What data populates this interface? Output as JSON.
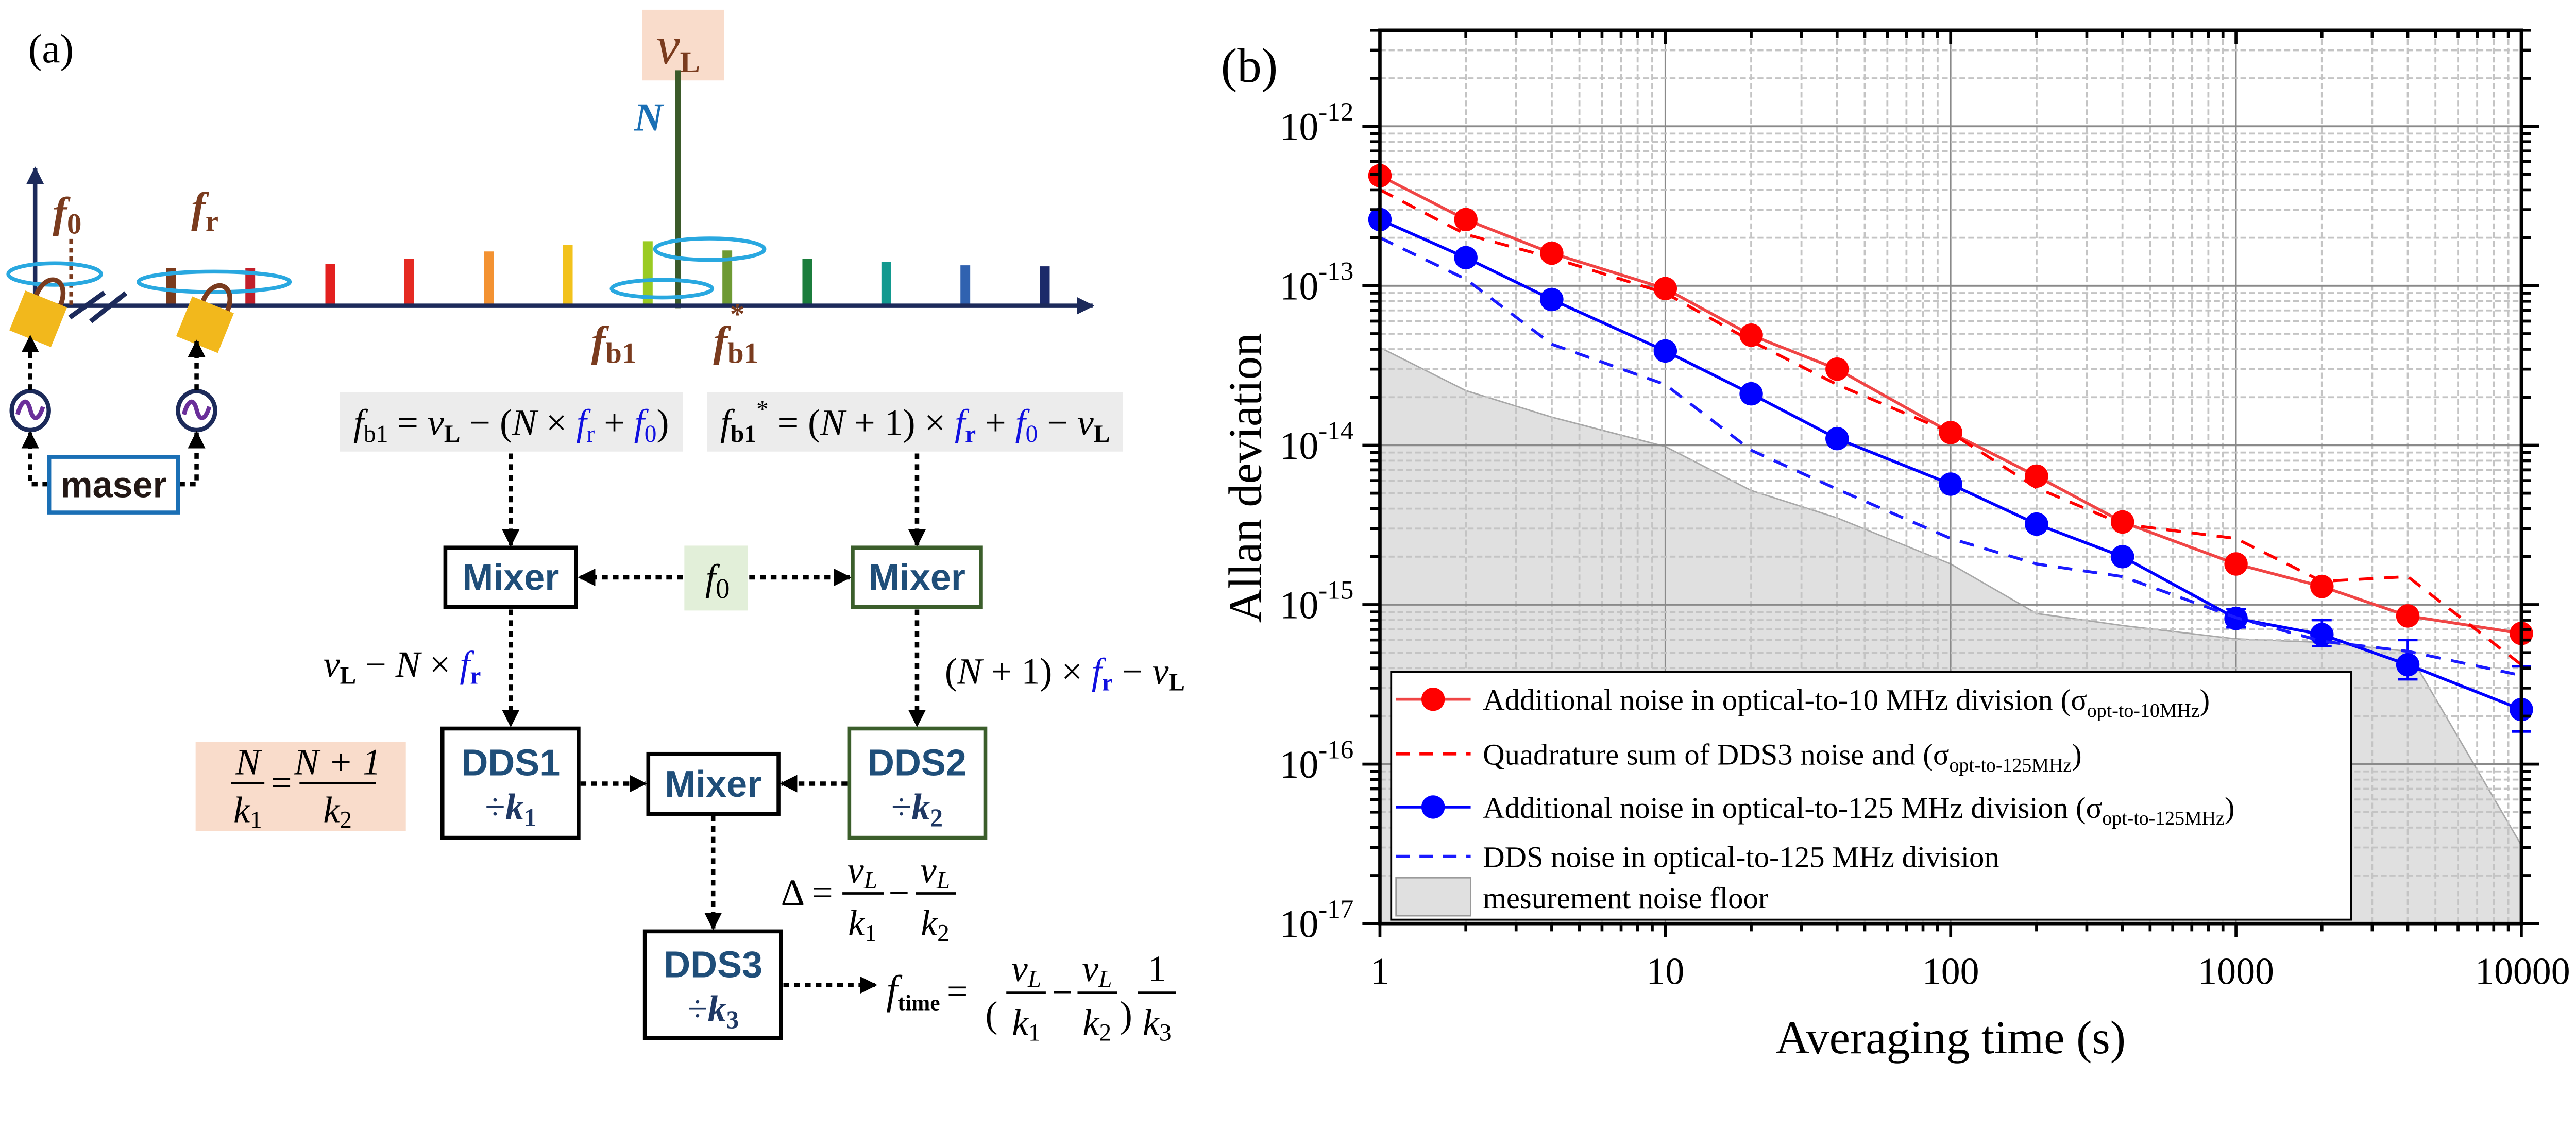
{
  "diagram": {
    "panel_label": "(a)",
    "nu_L": {
      "sym": "ν",
      "sub": "L"
    },
    "N": "N",
    "f0": {
      "sym": "f",
      "sub": "0"
    },
    "fr": {
      "sym": "f",
      "sub": "r"
    },
    "fb1": {
      "sym": "f",
      "sub": "b1"
    },
    "fb1_star": {
      "sym": "f",
      "sub": "b1",
      "sup": "*"
    },
    "maser": "maser",
    "eq_fb1": [
      "f",
      "b1",
      " = ",
      "ν",
      "L",
      " − (",
      "N",
      " × ",
      "f",
      "r",
      " + ",
      "f",
      "0",
      ")"
    ],
    "eq_fb1_star": [
      "f",
      "b1",
      "*",
      " = (",
      "N",
      " + 1) × ",
      "f",
      "r",
      " + ",
      "f",
      "0",
      " − ",
      "ν",
      "L"
    ],
    "mixer_label": "Mixer",
    "f0_center": {
      "sym": "f",
      "sub": "0"
    },
    "beat_left": [
      "ν",
      "L",
      " − ",
      "N",
      " × ",
      "f",
      "r"
    ],
    "beat_right": [
      "(",
      "N",
      " + 1) × ",
      "f",
      "r",
      " − ",
      "ν",
      "L"
    ],
    "dds1": {
      "name": "DDS1",
      "div": "÷",
      "k": "k",
      "sub": "1"
    },
    "dds2": {
      "name": "DDS2",
      "div": "÷",
      "k": "k",
      "sub": "2"
    },
    "dds3": {
      "name": "DDS3",
      "div": "÷",
      "k": "k",
      "sub": "3"
    },
    "ratio": {
      "num1": "N",
      "den1_k": "k",
      "den1_sub": "1",
      "eq": "=",
      "num2": "N + 1",
      "den2_k": "k",
      "den2_sub": "2"
    },
    "delta": {
      "lhs": "Δ =",
      "nu": "ν",
      "nu_sub": "L",
      "k": "k",
      "sub1": "1",
      "minus": "−",
      "sub2": "2"
    },
    "ftime": {
      "f": "f",
      "f_sub": "time",
      "eq": "=",
      "open": "(",
      "close": ")",
      "nu": "ν",
      "nu_sub": "L",
      "k": "k",
      "sub1": "1",
      "minus": "−",
      "sub2": "2",
      "one": "1",
      "sub3": "3"
    },
    "comb_colors": [
      "#7b3b1c",
      "#c21f2a",
      "#e3201f",
      "#e52a22",
      "#f39232",
      "#f2c21c",
      "#9acb22",
      "#6e9a34",
      "#1b7d3c",
      "#12998f",
      "#3062b0",
      "#1c2a6a"
    ],
    "comb_heights": [
      0.74,
      0.74,
      0.82,
      0.92,
      1.06,
      1.19,
      1.26,
      1.08,
      0.92,
      0.86,
      0.79,
      0.77
    ]
  },
  "chart_data": {
    "type": "line",
    "panel_label": "(b)",
    "xlabel": "Averaging time (s)",
    "ylabel": "Allan deviation",
    "x_scale": "log",
    "y_scale": "log",
    "xlim": [
      1,
      10000
    ],
    "ylim": [
      1e-17,
      4e-12
    ],
    "grid": true,
    "legend_position": "bottom-left",
    "x_ticks": [
      "1",
      "10",
      "100",
      "1000",
      "10000"
    ],
    "x_tick_values": [
      1,
      10,
      100,
      1000,
      10000
    ],
    "y_ticks": [
      {
        "base": "10",
        "exp": "-12",
        "value": 1e-12
      },
      {
        "base": "10",
        "exp": "-13",
        "value": 1e-13
      },
      {
        "base": "10",
        "exp": "-14",
        "value": 1e-14
      },
      {
        "base": "10",
        "exp": "-15",
        "value": 1e-15
      },
      {
        "base": "10",
        "exp": "-16",
        "value": 1e-16
      },
      {
        "base": "10",
        "exp": "-17",
        "value": 1e-17
      }
    ],
    "x": [
      1,
      2,
      4,
      10,
      20,
      40,
      100,
      200,
      400,
      1000,
      2000,
      4000,
      10000
    ],
    "series": [
      {
        "name": "Additional noise in optical-to-10 MHz division (",
        "symbol": "σ",
        "symbol_sub": "opt-to-10MHz",
        "name_end": ")",
        "color": "#ff0000",
        "line_color": "#f04545",
        "style": "solid",
        "marker": "circle",
        "values": [
          4.9e-13,
          2.6e-13,
          1.6e-13,
          9.6e-14,
          4.9e-14,
          3e-14,
          1.2e-14,
          6.4e-15,
          3.3e-15,
          1.8e-15,
          1.3e-15,
          8.5e-16,
          6.6e-16
        ]
      },
      {
        "name": "Quadrature sum of DDS3 noise and (",
        "symbol": "σ",
        "symbol_sub": "opt-to-125MHz",
        "name_end": ")",
        "color": "#ff0000",
        "line_color": "#ff0000",
        "style": "dashed",
        "marker": "none",
        "values": [
          4e-13,
          2.1e-13,
          1.5e-13,
          9e-14,
          4.5e-14,
          2.4e-14,
          1.2e-14,
          5.4e-15,
          3.2e-15,
          2.6e-15,
          1.4e-15,
          1.5e-15,
          4.2e-16
        ]
      },
      {
        "name": "Additional noise in optical-to-125 MHz division (",
        "symbol": "σ",
        "symbol_sub": "opt-to-125MHz",
        "name_end": ")",
        "color": "#0000ff",
        "line_color": "#0000ff",
        "style": "solid",
        "marker": "circle",
        "values": [
          2.6e-13,
          1.5e-13,
          8.2e-14,
          3.9e-14,
          2.1e-14,
          1.1e-14,
          5.7e-15,
          3.2e-15,
          2e-15,
          8.2e-16,
          6.5e-16,
          4.2e-16,
          2.2e-16
        ],
        "error_bars": [
          {
            "x": 1000,
            "low": 7.2e-16,
            "high": 9.4e-16
          },
          {
            "x": 2000,
            "low": 5.5e-16,
            "high": 8e-16
          },
          {
            "x": 4000,
            "low": 3.4e-16,
            "high": 6e-16
          },
          {
            "x": 10000,
            "low": 1.6e-16,
            "high": 4.1e-16
          }
        ]
      },
      {
        "name": "DDS noise in optical-to-125 MHz division",
        "symbol": "",
        "symbol_sub": "",
        "name_end": "",
        "color": "#0000ff",
        "line_color": "#1a1aff",
        "style": "dashed",
        "marker": "none",
        "values": [
          2e-13,
          1.1e-13,
          4.3e-14,
          2.4e-14,
          9.3e-15,
          5.3e-15,
          2.6e-15,
          1.8e-15,
          1.5e-15,
          8.3e-16,
          5.9e-16,
          5.1e-16,
          3.6e-16
        ]
      }
    ],
    "noise_floor": {
      "name": "mesurement noise floor",
      "color": "#e0e0e0",
      "values": [
        4.1e-14,
        2.2e-14,
        1.5e-14,
        9.8e-15,
        5.2e-15,
        3.5e-15,
        1.8e-15,
        8.8e-16,
        7.4e-16,
        6.1e-16,
        5.8e-16,
        5.1e-16,
        3.1e-17
      ]
    }
  }
}
